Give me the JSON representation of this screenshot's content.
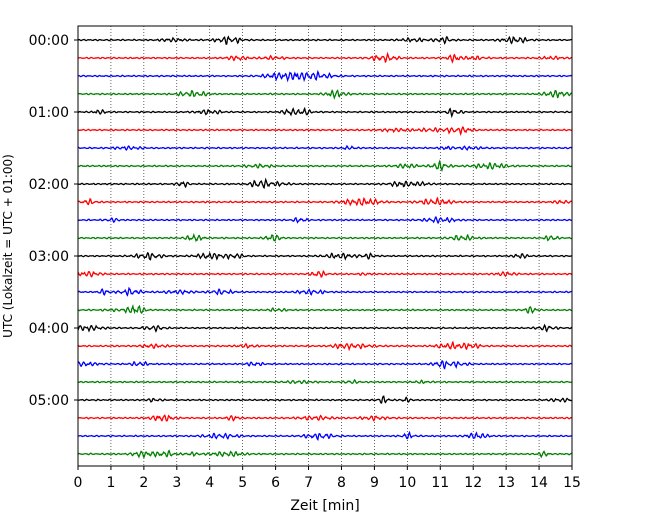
{
  "chart_data": {
    "type": "line",
    "title": "",
    "xlabel": "Zeit  [min]",
    "ylabel": "UTC (Lokalzeit = UTC + 01:00)",
    "xlim": [
      0,
      15
    ],
    "x_ticks": [
      "0",
      "1",
      "2",
      "3",
      "4",
      "5",
      "6",
      "7",
      "8",
      "9",
      "10",
      "11",
      "12",
      "13",
      "14",
      "15"
    ],
    "y_ticks": [
      "00:00",
      "01:00",
      "02:00",
      "03:00",
      "04:00",
      "05:00"
    ],
    "grid": "vertical dotted at each minute",
    "trace_count": 24,
    "trace_interval_min": 15,
    "trace_colors": [
      "#000000",
      "#ff0000",
      "#0000ff",
      "#008000"
    ]
  }
}
